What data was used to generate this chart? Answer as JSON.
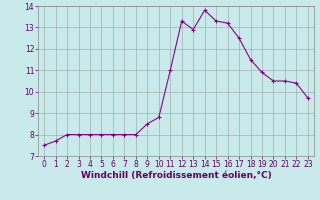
{
  "x": [
    0,
    1,
    2,
    3,
    4,
    5,
    6,
    7,
    8,
    9,
    10,
    11,
    12,
    13,
    14,
    15,
    16,
    17,
    18,
    19,
    20,
    21,
    22,
    23
  ],
  "y": [
    7.5,
    7.7,
    8.0,
    8.0,
    8.0,
    8.0,
    8.0,
    8.0,
    8.0,
    8.5,
    8.8,
    11.0,
    13.3,
    12.9,
    13.8,
    13.3,
    13.2,
    12.5,
    11.5,
    10.9,
    10.5,
    10.5,
    10.4,
    9.7
  ],
  "line_color": "#8B008B",
  "marker": "+",
  "marker_size": 3,
  "background_color": "#c8eaea",
  "grid_color": "#a0a0a0",
  "xlabel": "Windchill (Refroidissement éolien,°C)",
  "xlim": [
    -0.5,
    23.5
  ],
  "ylim": [
    7.0,
    14.0
  ],
  "yticks": [
    7,
    8,
    9,
    10,
    11,
    12,
    13,
    14
  ],
  "xticks": [
    0,
    1,
    2,
    3,
    4,
    5,
    6,
    7,
    8,
    9,
    10,
    11,
    12,
    13,
    14,
    15,
    16,
    17,
    18,
    19,
    20,
    21,
    22,
    23
  ],
  "tick_fontsize": 5.5,
  "xlabel_fontsize": 6.5,
  "line_width": 0.8,
  "marker_edge_width": 0.8
}
